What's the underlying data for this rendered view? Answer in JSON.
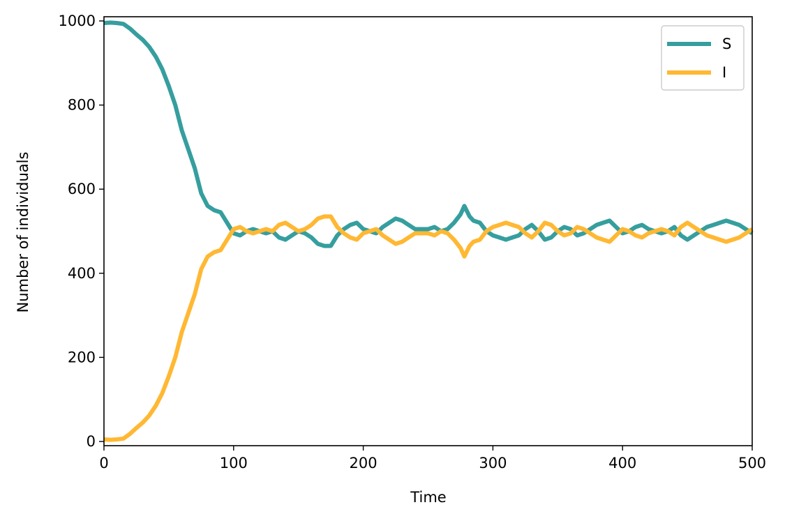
{
  "chart_data": {
    "type": "line",
    "title": "",
    "xlabel": "Time",
    "ylabel": "Number of individuals",
    "xlim": [
      0,
      500
    ],
    "ylim": [
      -10,
      1010
    ],
    "xticks": [
      "0",
      "100",
      "200",
      "300",
      "400",
      "500"
    ],
    "yticks": [
      "0",
      "200",
      "400",
      "600",
      "800",
      "1000"
    ],
    "grid": false,
    "legend_position": "top-right",
    "series": [
      {
        "name": "S",
        "color": "#369e9e",
        "x": [
          0,
          5,
          10,
          15,
          20,
          25,
          30,
          35,
          40,
          45,
          50,
          55,
          60,
          65,
          70,
          75,
          80,
          85,
          90,
          95,
          100,
          105,
          110,
          115,
          120,
          125,
          130,
          135,
          140,
          145,
          150,
          155,
          160,
          165,
          170,
          175,
          180,
          185,
          190,
          195,
          200,
          205,
          210,
          215,
          220,
          225,
          230,
          235,
          240,
          245,
          250,
          255,
          260,
          265,
          270,
          275,
          278,
          282,
          285,
          290,
          295,
          300,
          305,
          310,
          315,
          320,
          325,
          330,
          335,
          340,
          345,
          350,
          355,
          360,
          365,
          370,
          375,
          380,
          385,
          390,
          395,
          400,
          405,
          410,
          415,
          420,
          425,
          430,
          435,
          440,
          445,
          450,
          455,
          460,
          465,
          470,
          475,
          480,
          485,
          490,
          495,
          500
        ],
        "y": [
          995,
          996,
          995,
          993,
          982,
          968,
          955,
          938,
          915,
          885,
          845,
          800,
          740,
          695,
          650,
          590,
          560,
          550,
          545,
          520,
          495,
          490,
          500,
          505,
          500,
          495,
          500,
          485,
          480,
          490,
          500,
          495,
          485,
          470,
          465,
          465,
          490,
          505,
          515,
          520,
          505,
          500,
          495,
          510,
          520,
          530,
          525,
          515,
          505,
          505,
          505,
          510,
          500,
          505,
          520,
          540,
          560,
          535,
          525,
          520,
          500,
          490,
          485,
          480,
          485,
          490,
          505,
          515,
          500,
          480,
          485,
          500,
          510,
          505,
          490,
          495,
          505,
          515,
          520,
          525,
          510,
          495,
          500,
          510,
          515,
          505,
          500,
          495,
          500,
          510,
          490,
          480,
          490,
          500,
          510,
          515,
          520,
          525,
          520,
          515,
          505,
          495
        ]
      },
      {
        "name": "I",
        "color": "#ffb833",
        "x": [
          0,
          5,
          10,
          15,
          20,
          25,
          30,
          35,
          40,
          45,
          50,
          55,
          60,
          65,
          70,
          75,
          80,
          85,
          90,
          95,
          100,
          105,
          110,
          115,
          120,
          125,
          130,
          135,
          140,
          145,
          150,
          155,
          160,
          165,
          170,
          175,
          180,
          185,
          190,
          195,
          200,
          205,
          210,
          215,
          220,
          225,
          230,
          235,
          240,
          245,
          250,
          255,
          260,
          265,
          270,
          275,
          278,
          282,
          285,
          290,
          295,
          300,
          305,
          310,
          315,
          320,
          325,
          330,
          335,
          340,
          345,
          350,
          355,
          360,
          365,
          370,
          375,
          380,
          385,
          390,
          395,
          400,
          405,
          410,
          415,
          420,
          425,
          430,
          435,
          440,
          445,
          450,
          455,
          460,
          465,
          470,
          475,
          480,
          485,
          490,
          495,
          500
        ],
        "y": [
          5,
          4,
          5,
          7,
          18,
          32,
          45,
          62,
          85,
          115,
          155,
          200,
          260,
          305,
          350,
          410,
          440,
          450,
          455,
          480,
          505,
          510,
          500,
          495,
          500,
          505,
          500,
          515,
          520,
          510,
          500,
          505,
          515,
          530,
          535,
          535,
          510,
          495,
          485,
          480,
          495,
          500,
          505,
          490,
          480,
          470,
          475,
          485,
          495,
          495,
          495,
          490,
          500,
          495,
          480,
          460,
          440,
          465,
          475,
          480,
          500,
          510,
          515,
          520,
          515,
          510,
          495,
          485,
          500,
          520,
          515,
          500,
          490,
          495,
          510,
          505,
          495,
          485,
          480,
          475,
          490,
          505,
          500,
          490,
          485,
          495,
          500,
          505,
          500,
          490,
          510,
          520,
          510,
          500,
          490,
          485,
          480,
          475,
          480,
          485,
          495,
          505
        ]
      }
    ]
  }
}
